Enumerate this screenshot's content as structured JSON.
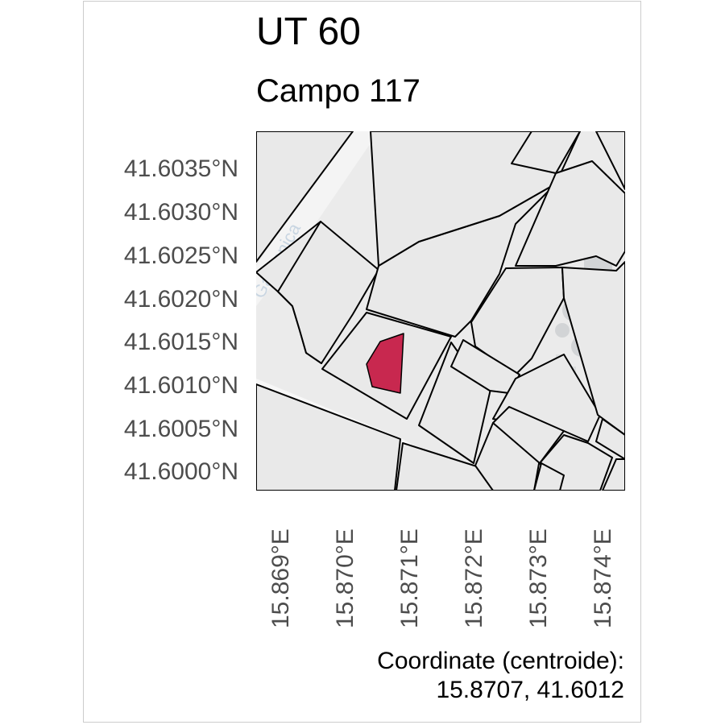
{
  "title": "UT 60",
  "subtitle": "Campo 117",
  "map": {
    "street_label": "Garganica",
    "highlight_color": "#c8284f",
    "background_color": "#ebebeb",
    "latitude_ticks": [
      "41.6035°N",
      "41.6030°N",
      "41.6025°N",
      "41.6020°N",
      "41.6015°N",
      "41.6010°N",
      "41.6005°N",
      "41.6000°N"
    ],
    "longitude_ticks": [
      "15.869°E",
      "15.870°E",
      "15.871°E",
      "15.872°E",
      "15.873°E",
      "15.874°E"
    ]
  },
  "caption": {
    "line1": "Coordinate (centroide):",
    "line2": "15.8707, 41.6012"
  }
}
